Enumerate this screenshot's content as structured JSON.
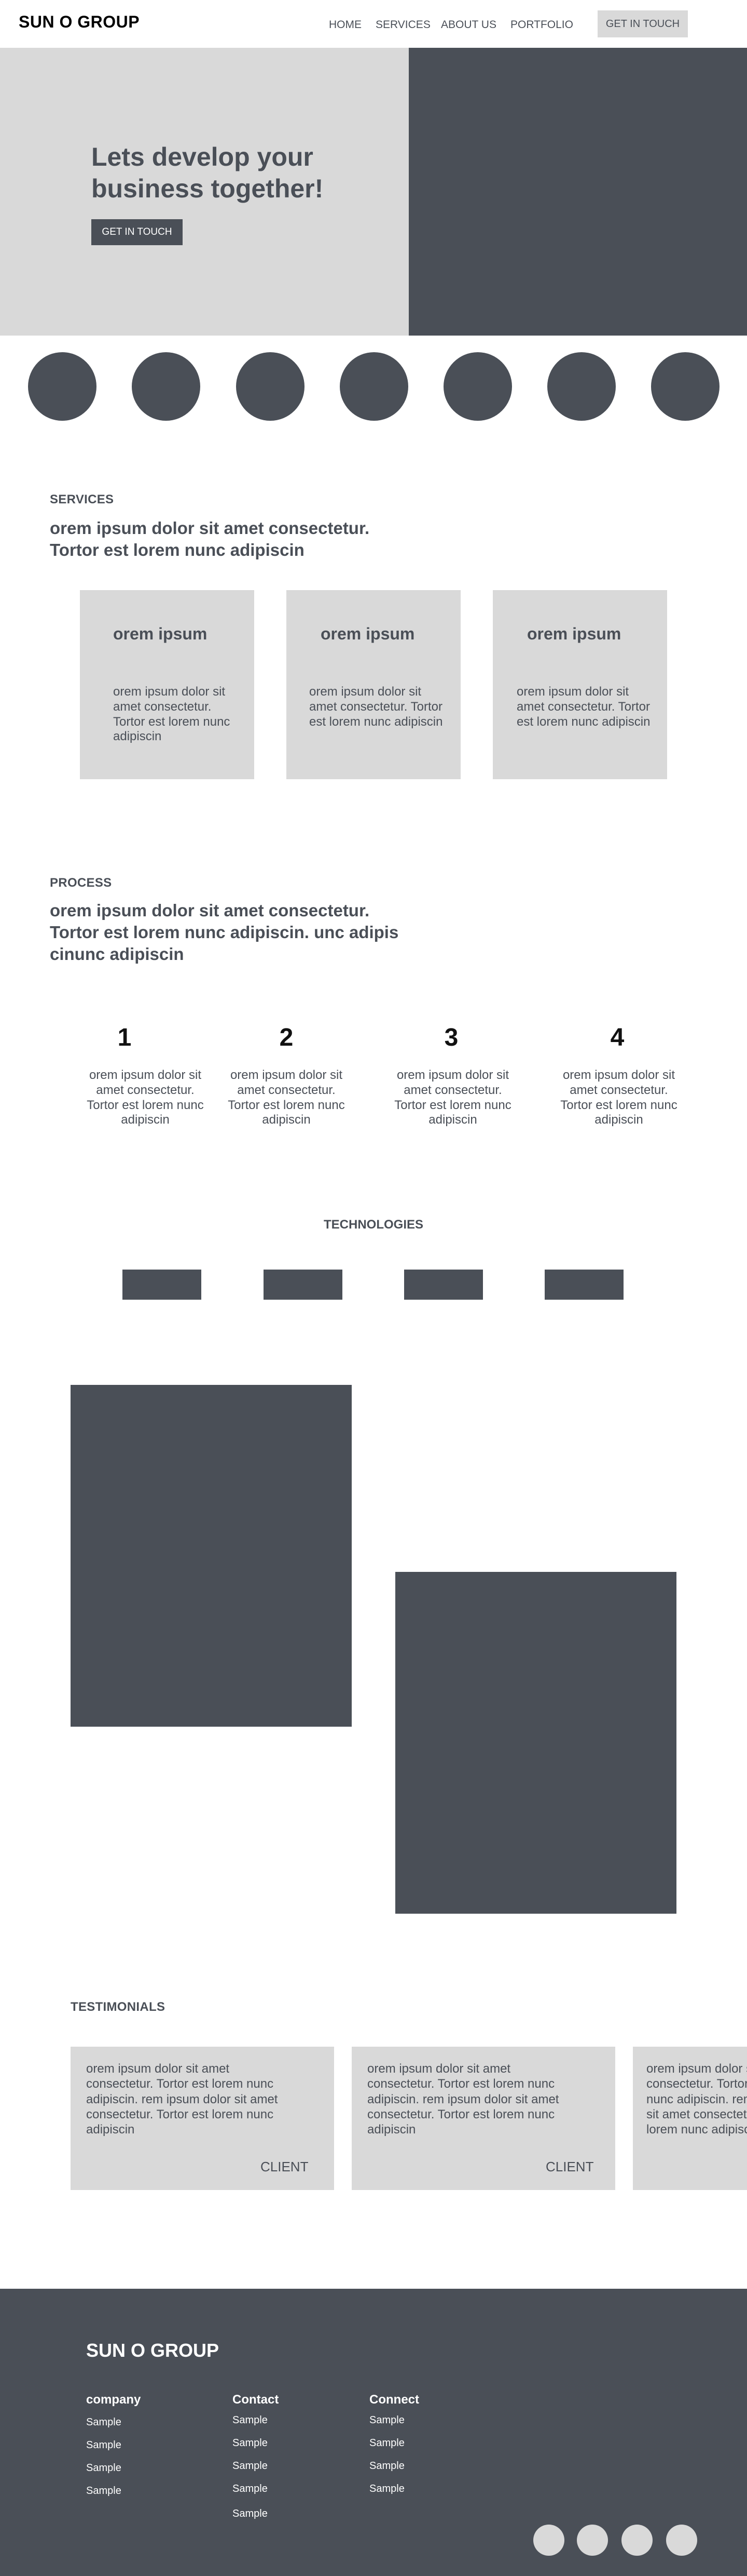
{
  "header": {
    "logo": "SUN O GROUP",
    "nav": [
      "HOME",
      "SERVICES",
      "ABOUT US",
      "PORTFOLIO"
    ],
    "cta": "GET IN TOUCH"
  },
  "hero": {
    "title": "Lets develop your business together!",
    "cta": "GET IN TOUCH"
  },
  "services": {
    "label": "SERVICES",
    "title": "orem ipsum dolor sit amet consectetur. Tortor est lorem nunc adipiscin",
    "cards": [
      {
        "title": "orem ipsum",
        "text": "orem ipsum dolor sit amet consectetur. Tortor est lorem nunc adipiscin"
      },
      {
        "title": "orem ipsum",
        "text": "orem ipsum dolor sit amet consectetur. Tortor est lorem nunc adipiscin"
      },
      {
        "title": "orem ipsum",
        "text": "orem ipsum dolor sit amet consectetur. Tortor est lorem nunc adipiscin"
      }
    ]
  },
  "process": {
    "label": "PROCESS",
    "title": "orem ipsum dolor sit amet consectetur. Tortor est lorem nunc adipiscin. unc adipis cinunc adipiscin",
    "steps": [
      {
        "num": "1",
        "text": "orem ipsum dolor sit amet consectetur. Tortor est lorem nunc adipiscin"
      },
      {
        "num": "2",
        "text": "orem ipsum dolor sit amet consectetur. Tortor est lorem nunc adipiscin"
      },
      {
        "num": "3",
        "text": "orem ipsum dolor sit amet consectetur. Tortor est lorem nunc adipiscin"
      },
      {
        "num": "4",
        "text": "orem ipsum dolor sit amet consectetur. Tortor est lorem nunc adipiscin"
      }
    ]
  },
  "technologies": {
    "label": "TECHNOLOGIES"
  },
  "testimonials": {
    "label": "TESTIMONIALS",
    "items": [
      {
        "text": "orem ipsum dolor sit amet consectetur. Tortor est lorem nunc adipiscin. rem ipsum dolor sit amet consectetur. Tortor est lorem nunc adipiscin",
        "client": "CLIENT"
      },
      {
        "text": "orem ipsum dolor sit amet consectetur. Tortor est lorem nunc adipiscin. rem ipsum dolor sit amet consectetur. Tortor est lorem nunc adipiscin",
        "client": "CLIENT"
      },
      {
        "text": "orem ipsum dolor sit amet consectetur. Tortor est lorem nunc adipiscin. rem ipsum dolor sit amet consectetur. Tortor est lorem nunc adipiscin",
        "client": ""
      }
    ]
  },
  "footer": {
    "logo": "SUN O GROUP",
    "columns": [
      {
        "heading": "company",
        "items": [
          "Sample",
          "Sample",
          "Sample",
          "Sample"
        ]
      },
      {
        "heading": "Contact",
        "items": [
          "Sample",
          "Sample",
          "Sample",
          "Sample",
          "Sample"
        ]
      },
      {
        "heading": "Connect",
        "items": [
          "Sample",
          "Sample",
          "Sample",
          "Sample"
        ]
      }
    ]
  },
  "colors": {
    "dark": "#4a4f57",
    "light": "#d9d9d9",
    "white": "#ffffff"
  }
}
